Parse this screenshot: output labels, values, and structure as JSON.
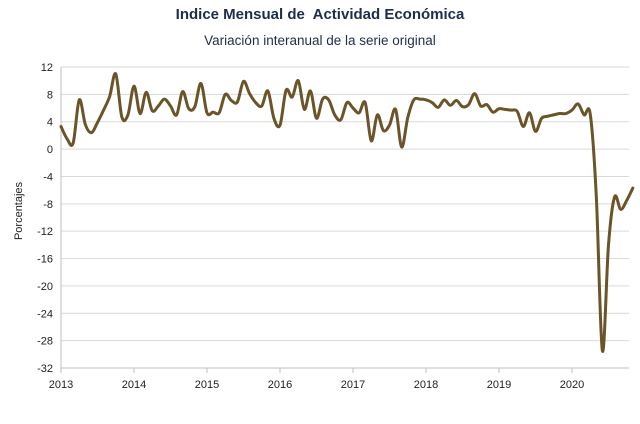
{
  "chart_data": {
    "type": "line",
    "title": "Indice Mensual de  Actividad Económica",
    "subtitle": "Variación interanual de la serie original",
    "ylabel": "Porcentajes",
    "xlabel": "",
    "ylim": [
      -32,
      12
    ],
    "yticks": [
      "12",
      "8",
      "4",
      "0",
      "-4",
      "-8",
      "-12",
      "-16",
      "-20",
      "-24",
      "-28",
      "-32"
    ],
    "xticks": [
      "2013",
      "2014",
      "2015",
      "2016",
      "2017",
      "2018",
      "2019",
      "2020"
    ],
    "grid": "horizontal",
    "line_color": "#6b5428",
    "series": [
      {
        "x_start": "2013-01",
        "frequency": "monthly",
        "values": [
          3.3,
          1.5,
          0.9,
          7.2,
          3.6,
          2.4,
          3.9,
          5.7,
          7.7,
          11.0,
          4.7,
          5.0,
          9.2,
          5.2,
          8.3,
          5.6,
          6.3,
          7.3,
          6.3,
          5.0,
          8.4,
          5.9,
          6.2,
          9.6,
          5.3,
          5.4,
          5.3,
          8.0,
          7.1,
          6.9,
          9.9,
          8.1,
          6.8,
          6.3,
          8.5,
          4.5,
          3.5,
          8.6,
          7.6,
          10.0,
          5.8,
          8.5,
          4.5,
          7.3,
          7.2,
          5.0,
          4.3,
          6.8,
          6.0,
          5.3,
          6.8,
          1.2,
          5.0,
          2.7,
          3.5,
          5.8,
          0.3,
          4.6,
          7.2,
          7.3,
          7.2,
          6.8,
          6.1,
          7.2,
          6.4,
          7.1,
          6.2,
          6.5,
          8.1,
          6.3,
          6.5,
          5.4,
          5.9,
          5.8,
          5.7,
          5.5,
          3.3,
          5.3,
          2.6,
          4.5,
          4.8,
          5.0,
          5.2,
          5.2,
          5.7,
          6.6,
          5.0,
          5.1,
          -7.0,
          -29.5,
          -14.0,
          -7.0,
          -8.8,
          -7.5,
          -5.7
        ]
      }
    ]
  }
}
